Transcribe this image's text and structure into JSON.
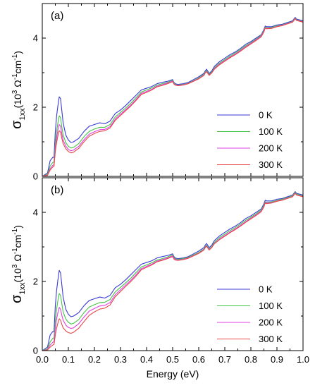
{
  "chart_data": [
    {
      "type": "line",
      "panel_label": "(a)",
      "ylabel": {
        "symbol": "σ",
        "sub": "1xx",
        "unit_open": "(10",
        "unit_exp": "3",
        "unit_mid": " Ω",
        "unit_exp2": "-1",
        "unit_cm": "cm",
        "unit_exp3": "-1",
        "unit_close": ")"
      },
      "xlim": [
        0.0,
        1.0
      ],
      "ylim": [
        0,
        5.0
      ],
      "yticks": [
        0,
        2,
        4
      ],
      "xticks": [
        0.0,
        0.1,
        0.2,
        0.3,
        0.4,
        0.5,
        0.6,
        0.7,
        0.8,
        0.9,
        1.0
      ],
      "show_x_tick_labels": false,
      "legend_position": "lower-right",
      "x": [
        0.0,
        0.02,
        0.03,
        0.04,
        0.045,
        0.05,
        0.055,
        0.06,
        0.065,
        0.07,
        0.075,
        0.08,
        0.09,
        0.1,
        0.11,
        0.12,
        0.14,
        0.16,
        0.18,
        0.2,
        0.22,
        0.24,
        0.26,
        0.28,
        0.3,
        0.32,
        0.34,
        0.36,
        0.38,
        0.4,
        0.42,
        0.44,
        0.45,
        0.46,
        0.48,
        0.5,
        0.505,
        0.51,
        0.52,
        0.54,
        0.56,
        0.58,
        0.6,
        0.62,
        0.625,
        0.63,
        0.64,
        0.65,
        0.66,
        0.68,
        0.7,
        0.72,
        0.74,
        0.76,
        0.78,
        0.8,
        0.82,
        0.84,
        0.85,
        0.855,
        0.86,
        0.88,
        0.9,
        0.92,
        0.94,
        0.96,
        0.97,
        0.975,
        1.0
      ],
      "series": [
        {
          "name": "0 K",
          "color": "#3a3ad6",
          "values": [
            0.0,
            0.1,
            0.45,
            0.55,
            0.55,
            1.3,
            1.75,
            2.05,
            2.3,
            2.25,
            1.9,
            1.55,
            1.2,
            1.05,
            0.98,
            1.0,
            1.1,
            1.3,
            1.45,
            1.5,
            1.55,
            1.52,
            1.6,
            1.82,
            1.92,
            2.05,
            2.2,
            2.35,
            2.5,
            2.55,
            2.6,
            2.68,
            2.7,
            2.72,
            2.75,
            2.8,
            2.72,
            2.68,
            2.66,
            2.68,
            2.72,
            2.8,
            2.88,
            2.98,
            3.05,
            3.1,
            2.98,
            3.05,
            3.18,
            3.32,
            3.42,
            3.52,
            3.6,
            3.7,
            3.82,
            3.9,
            4.0,
            4.1,
            4.25,
            4.35,
            4.33,
            4.33,
            4.38,
            4.4,
            4.45,
            4.5,
            4.6,
            4.55,
            4.5
          ]
        },
        {
          "name": "100 K",
          "color": "#45c545",
          "values": [
            0.0,
            0.06,
            0.3,
            0.4,
            0.42,
            0.95,
            1.3,
            1.55,
            1.75,
            1.7,
            1.42,
            1.2,
            0.98,
            0.87,
            0.82,
            0.84,
            0.95,
            1.15,
            1.3,
            1.37,
            1.42,
            1.42,
            1.5,
            1.72,
            1.85,
            1.98,
            2.12,
            2.28,
            2.44,
            2.5,
            2.56,
            2.64,
            2.66,
            2.68,
            2.72,
            2.78,
            2.7,
            2.66,
            2.64,
            2.66,
            2.7,
            2.77,
            2.85,
            2.95,
            3.02,
            3.06,
            2.95,
            3.02,
            3.14,
            3.28,
            3.38,
            3.48,
            3.57,
            3.67,
            3.78,
            3.87,
            3.97,
            4.08,
            4.22,
            4.32,
            4.3,
            4.31,
            4.36,
            4.38,
            4.43,
            4.48,
            4.58,
            4.53,
            4.48
          ]
        },
        {
          "name": "200 K",
          "color": "#e040e0",
          "values": [
            0.0,
            0.04,
            0.22,
            0.32,
            0.34,
            0.82,
            1.12,
            1.35,
            1.5,
            1.45,
            1.23,
            1.05,
            0.88,
            0.78,
            0.74,
            0.76,
            0.87,
            1.06,
            1.22,
            1.29,
            1.35,
            1.36,
            1.44,
            1.66,
            1.8,
            1.93,
            2.07,
            2.23,
            2.4,
            2.46,
            2.52,
            2.61,
            2.63,
            2.65,
            2.7,
            2.76,
            2.68,
            2.65,
            2.63,
            2.65,
            2.69,
            2.76,
            2.83,
            2.93,
            3.0,
            3.04,
            2.93,
            3.0,
            3.12,
            3.25,
            3.35,
            3.45,
            3.54,
            3.64,
            3.75,
            3.85,
            3.95,
            4.06,
            4.2,
            4.3,
            4.28,
            4.29,
            4.34,
            4.37,
            4.42,
            4.47,
            4.57,
            4.52,
            4.47
          ]
        },
        {
          "name": "300 K",
          "color": "#e84848",
          "values": [
            0.0,
            0.03,
            0.18,
            0.27,
            0.29,
            0.72,
            0.98,
            1.18,
            1.32,
            1.28,
            1.1,
            0.95,
            0.8,
            0.72,
            0.68,
            0.7,
            0.81,
            1.0,
            1.16,
            1.24,
            1.3,
            1.32,
            1.4,
            1.62,
            1.76,
            1.9,
            2.04,
            2.2,
            2.37,
            2.43,
            2.5,
            2.59,
            2.61,
            2.63,
            2.68,
            2.74,
            2.67,
            2.64,
            2.62,
            2.64,
            2.68,
            2.75,
            2.82,
            2.92,
            2.99,
            3.03,
            2.92,
            2.99,
            3.1,
            3.23,
            3.33,
            3.43,
            3.52,
            3.62,
            3.73,
            3.83,
            3.93,
            4.04,
            4.18,
            4.29,
            4.27,
            4.28,
            4.33,
            4.36,
            4.41,
            4.46,
            4.56,
            4.51,
            4.46
          ]
        }
      ]
    },
    {
      "type": "line",
      "panel_label": "(b)",
      "ylabel": {
        "symbol": "σ",
        "sub": "1xx",
        "unit_open": "(10",
        "unit_exp": "3",
        "unit_mid": " Ω",
        "unit_exp2": "-1",
        "unit_cm": "cm",
        "unit_exp3": "-1",
        "unit_close": ")"
      },
      "xlabel": "Energy (eV)",
      "xlim": [
        0.0,
        1.0
      ],
      "ylim": [
        0,
        5.0
      ],
      "yticks": [
        0,
        2,
        4
      ],
      "xticks": [
        0.0,
        0.1,
        0.2,
        0.3,
        0.4,
        0.5,
        0.6,
        0.7,
        0.8,
        0.9,
        1.0
      ],
      "xtick_labels": [
        "0.0",
        "0.1",
        "0.2",
        "0.3",
        "0.4",
        "0.5",
        "0.6",
        "0.7",
        "0.8",
        "0.9",
        "1.0"
      ],
      "show_x_tick_labels": true,
      "legend_position": "lower-right",
      "x": [
        0.0,
        0.02,
        0.03,
        0.04,
        0.045,
        0.05,
        0.055,
        0.06,
        0.065,
        0.07,
        0.075,
        0.08,
        0.09,
        0.1,
        0.11,
        0.12,
        0.14,
        0.16,
        0.18,
        0.2,
        0.22,
        0.24,
        0.26,
        0.28,
        0.3,
        0.32,
        0.34,
        0.36,
        0.38,
        0.4,
        0.42,
        0.44,
        0.45,
        0.46,
        0.48,
        0.5,
        0.505,
        0.51,
        0.52,
        0.54,
        0.56,
        0.58,
        0.6,
        0.62,
        0.625,
        0.63,
        0.64,
        0.65,
        0.66,
        0.68,
        0.7,
        0.72,
        0.74,
        0.76,
        0.78,
        0.8,
        0.82,
        0.84,
        0.85,
        0.855,
        0.86,
        0.88,
        0.9,
        0.92,
        0.94,
        0.96,
        0.97,
        0.975,
        1.0
      ],
      "series": [
        {
          "name": "0 K",
          "color": "#3a3ad6",
          "values": [
            0.0,
            0.1,
            0.45,
            0.55,
            0.55,
            1.3,
            1.75,
            2.05,
            2.32,
            2.25,
            1.9,
            1.55,
            1.2,
            1.05,
            0.98,
            1.0,
            1.1,
            1.3,
            1.45,
            1.5,
            1.55,
            1.52,
            1.6,
            1.82,
            1.92,
            2.05,
            2.2,
            2.35,
            2.5,
            2.55,
            2.6,
            2.68,
            2.7,
            2.72,
            2.75,
            2.8,
            2.72,
            2.68,
            2.66,
            2.68,
            2.72,
            2.8,
            2.88,
            2.98,
            3.05,
            3.1,
            2.98,
            3.05,
            3.18,
            3.32,
            3.42,
            3.52,
            3.6,
            3.7,
            3.82,
            3.9,
            4.0,
            4.1,
            4.25,
            4.35,
            4.33,
            4.33,
            4.38,
            4.4,
            4.45,
            4.5,
            4.6,
            4.55,
            4.5
          ]
        },
        {
          "name": "100 K",
          "color": "#45c545",
          "values": [
            0.0,
            0.05,
            0.25,
            0.35,
            0.37,
            0.85,
            1.2,
            1.45,
            1.65,
            1.6,
            1.35,
            1.12,
            0.92,
            0.82,
            0.77,
            0.79,
            0.9,
            1.1,
            1.26,
            1.33,
            1.39,
            1.4,
            1.48,
            1.7,
            1.83,
            1.96,
            2.1,
            2.26,
            2.42,
            2.48,
            2.54,
            2.62,
            2.64,
            2.66,
            2.71,
            2.77,
            2.69,
            2.66,
            2.64,
            2.66,
            2.7,
            2.77,
            2.84,
            2.94,
            3.01,
            3.05,
            2.94,
            3.01,
            3.13,
            3.27,
            3.37,
            3.47,
            3.56,
            3.66,
            3.77,
            3.86,
            3.96,
            4.07,
            4.21,
            4.31,
            4.29,
            4.3,
            4.35,
            4.38,
            4.43,
            4.48,
            4.58,
            4.53,
            4.48
          ]
        },
        {
          "name": "200 K",
          "color": "#e040e0",
          "values": [
            0.0,
            0.03,
            0.16,
            0.24,
            0.26,
            0.65,
            0.92,
            1.1,
            1.25,
            1.2,
            1.02,
            0.88,
            0.74,
            0.67,
            0.64,
            0.66,
            0.78,
            0.97,
            1.14,
            1.22,
            1.29,
            1.31,
            1.39,
            1.62,
            1.76,
            1.9,
            2.04,
            2.2,
            2.37,
            2.44,
            2.5,
            2.59,
            2.61,
            2.63,
            2.68,
            2.74,
            2.67,
            2.64,
            2.62,
            2.64,
            2.68,
            2.75,
            2.82,
            2.92,
            2.99,
            3.03,
            2.92,
            2.99,
            3.1,
            3.23,
            3.33,
            3.43,
            3.52,
            3.62,
            3.73,
            3.83,
            3.93,
            4.04,
            4.18,
            4.29,
            4.27,
            4.28,
            4.33,
            4.36,
            4.41,
            4.46,
            4.56,
            4.51,
            4.46
          ]
        },
        {
          "name": "300 K",
          "color": "#e84848",
          "values": [
            0.0,
            0.02,
            0.1,
            0.16,
            0.18,
            0.45,
            0.65,
            0.8,
            0.92,
            0.88,
            0.76,
            0.66,
            0.57,
            0.52,
            0.5,
            0.53,
            0.65,
            0.84,
            1.02,
            1.12,
            1.2,
            1.23,
            1.32,
            1.56,
            1.71,
            1.86,
            2.0,
            2.16,
            2.34,
            2.41,
            2.48,
            2.57,
            2.59,
            2.61,
            2.66,
            2.72,
            2.65,
            2.62,
            2.61,
            2.63,
            2.67,
            2.74,
            2.81,
            2.91,
            2.98,
            3.02,
            2.91,
            2.98,
            3.09,
            3.21,
            3.31,
            3.41,
            3.5,
            3.6,
            3.71,
            3.81,
            3.91,
            4.02,
            4.16,
            4.27,
            4.25,
            4.27,
            4.32,
            4.35,
            4.4,
            4.45,
            4.55,
            4.5,
            4.45
          ]
        }
      ]
    }
  ]
}
